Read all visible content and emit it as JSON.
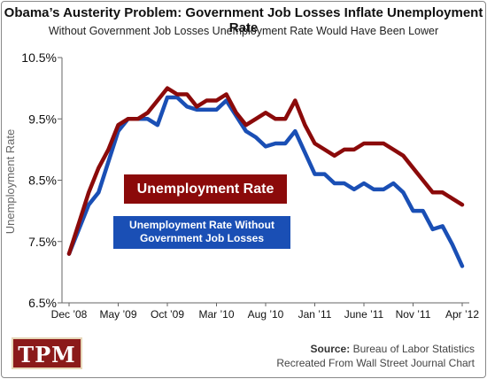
{
  "chart_data": {
    "type": "line",
    "title": "Obama’s Austerity Problem: Government Job Losses Inflate Unemployment Rate",
    "subtitle": "Without Government Job Losses Unemployment Rate Would Have Been Lower",
    "ylabel": "Unemployment Rate",
    "ylim": [
      6.5,
      10.5
    ],
    "y_ticks": [
      "10.5%",
      "9.5%",
      "8.5%",
      "7.5%",
      "6.5%"
    ],
    "x_tick_labels": [
      "Dec ’08",
      "May ’09",
      "Oct ’09",
      "Mar ’10",
      "Aug ’10",
      "Jan ’11",
      "June ’11",
      "Nov ’11",
      "Apr ’12"
    ],
    "x": [
      "Dec 2008",
      "Jan 2009",
      "Feb 2009",
      "Mar 2009",
      "Apr 2009",
      "May 2009",
      "Jun 2009",
      "Jul 2009",
      "Aug 2009",
      "Sep 2009",
      "Oct 2009",
      "Nov 2009",
      "Dec 2009",
      "Jan 2010",
      "Feb 2010",
      "Mar 2010",
      "Apr 2010",
      "May 2010",
      "Jun 2010",
      "Jul 2010",
      "Aug 2010",
      "Sep 2010",
      "Oct 2010",
      "Nov 2010",
      "Dec 2010",
      "Jan 2011",
      "Feb 2011",
      "Mar 2011",
      "Apr 2011",
      "May 2011",
      "Jun 2011",
      "Jul 2011",
      "Aug 2011",
      "Sep 2011",
      "Oct 2011",
      "Nov 2011",
      "Dec 2011",
      "Jan 2012",
      "Feb 2012",
      "Mar 2012",
      "Apr 2012"
    ],
    "series": [
      {
        "name": "Unemployment Rate",
        "color": "#8b0a0a",
        "values": [
          7.3,
          7.8,
          8.3,
          8.7,
          9.0,
          9.4,
          9.5,
          9.5,
          9.6,
          9.8,
          10.0,
          9.9,
          9.9,
          9.7,
          9.8,
          9.8,
          9.9,
          9.6,
          9.4,
          9.5,
          9.6,
          9.5,
          9.5,
          9.8,
          9.4,
          9.1,
          9.0,
          8.9,
          9.0,
          9.0,
          9.1,
          9.1,
          9.1,
          9.0,
          8.9,
          8.7,
          8.5,
          8.3,
          8.3,
          8.2,
          8.1
        ]
      },
      {
        "name": "Unemployment Rate Without Government Job Losses",
        "color": "#1a4fb5",
        "values": [
          7.3,
          7.7,
          8.1,
          8.3,
          8.8,
          9.3,
          9.5,
          9.5,
          9.5,
          9.4,
          9.85,
          9.85,
          9.7,
          9.65,
          9.65,
          9.65,
          9.8,
          9.55,
          9.3,
          9.2,
          9.05,
          9.1,
          9.1,
          9.3,
          8.95,
          8.6,
          8.6,
          8.45,
          8.45,
          8.35,
          8.45,
          8.35,
          8.35,
          8.45,
          8.3,
          8.0,
          8.0,
          7.7,
          7.75,
          7.45,
          7.1
        ]
      }
    ],
    "legend_labels": {
      "red": "Unemployment Rate",
      "blue_line1": "Unemployment Rate Without",
      "blue_line2": "Government Job Losses"
    },
    "grid": false
  },
  "source": {
    "label": "Source:",
    "text": "Bureau of Labor Statistics",
    "note": "Recreated From Wall Street Journal Chart"
  },
  "logo": {
    "text": "TPM"
  }
}
